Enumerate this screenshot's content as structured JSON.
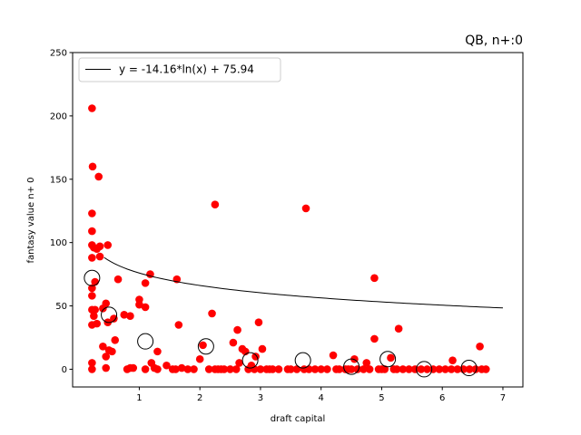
{
  "chart_data": {
    "type": "scatter",
    "title": "QB, n+:0",
    "xlabel": "draft capital",
    "ylabel": "fantasy value n+ 0",
    "xlim": [
      -0.1,
      7.33
    ],
    "ylim": [
      -14,
      250
    ],
    "xticks": [
      1,
      2,
      3,
      4,
      5,
      6,
      7
    ],
    "yticks": [
      0,
      50,
      100,
      150,
      200,
      250
    ],
    "grid": false,
    "legend": {
      "placement": "top-left",
      "entries": [
        "y = -14.16*ln(x) + 75.94"
      ]
    },
    "colors": {
      "points": "#ff0000",
      "fit": "#000000",
      "bins": "#000000"
    },
    "fit": {
      "a": -14.16,
      "b": 75.94,
      "x_range": [
        0.42,
        7.0
      ],
      "label": "y = -14.16*ln(x) + 75.94"
    },
    "bin_means": [
      {
        "x": 0.22,
        "y": 72
      },
      {
        "x": 0.5,
        "y": 43
      },
      {
        "x": 1.1,
        "y": 22
      },
      {
        "x": 2.1,
        "y": 18
      },
      {
        "x": 2.83,
        "y": 7
      },
      {
        "x": 3.7,
        "y": 7
      },
      {
        "x": 4.5,
        "y": 2
      },
      {
        "x": 5.1,
        "y": 8
      },
      {
        "x": 5.7,
        "y": 0
      },
      {
        "x": 6.44,
        "y": 1
      }
    ],
    "points": [
      [
        0.22,
        206
      ],
      [
        0.23,
        160
      ],
      [
        0.22,
        123
      ],
      [
        0.22,
        109
      ],
      [
        0.22,
        98
      ],
      [
        0.25,
        96
      ],
      [
        0.3,
        95
      ],
      [
        0.35,
        97
      ],
      [
        0.33,
        152
      ],
      [
        0.48,
        98
      ],
      [
        0.35,
        89
      ],
      [
        0.22,
        88
      ],
      [
        0.27,
        69
      ],
      [
        0.22,
        64
      ],
      [
        0.22,
        58
      ],
      [
        0.22,
        47
      ],
      [
        0.27,
        47
      ],
      [
        0.25,
        42
      ],
      [
        0.22,
        35
      ],
      [
        0.3,
        36
      ],
      [
        0.45,
        52
      ],
      [
        0.4,
        48
      ],
      [
        0.48,
        37
      ],
      [
        0.58,
        40
      ],
      [
        0.65,
        71
      ],
      [
        0.75,
        43
      ],
      [
        0.85,
        42
      ],
      [
        1.0,
        55
      ],
      [
        1.0,
        51
      ],
      [
        1.1,
        68
      ],
      [
        1.1,
        49
      ],
      [
        1.18,
        75
      ],
      [
        1.62,
        71
      ],
      [
        1.65,
        35
      ],
      [
        0.22,
        5
      ],
      [
        0.22,
        0
      ],
      [
        0.4,
        18
      ],
      [
        0.45,
        10
      ],
      [
        0.5,
        15
      ],
      [
        0.55,
        14
      ],
      [
        0.6,
        23
      ],
      [
        0.45,
        1
      ],
      [
        0.8,
        0
      ],
      [
        0.85,
        1
      ],
      [
        0.9,
        1
      ],
      [
        1.1,
        0
      ],
      [
        1.2,
        5
      ],
      [
        1.25,
        1
      ],
      [
        1.3,
        14
      ],
      [
        1.3,
        0
      ],
      [
        1.45,
        3
      ],
      [
        1.55,
        0
      ],
      [
        1.6,
        0
      ],
      [
        1.7,
        1
      ],
      [
        1.8,
        0
      ],
      [
        1.9,
        0
      ],
      [
        2.0,
        8
      ],
      [
        2.05,
        19
      ],
      [
        2.15,
        0
      ],
      [
        2.2,
        44
      ],
      [
        2.25,
        0
      ],
      [
        2.25,
        130
      ],
      [
        2.3,
        0
      ],
      [
        2.35,
        0
      ],
      [
        2.4,
        0
      ],
      [
        2.5,
        0
      ],
      [
        2.55,
        21
      ],
      [
        2.6,
        0
      ],
      [
        2.62,
        31
      ],
      [
        2.65,
        5
      ],
      [
        2.7,
        16
      ],
      [
        2.75,
        14
      ],
      [
        2.8,
        0
      ],
      [
        2.85,
        3
      ],
      [
        2.9,
        0
      ],
      [
        2.92,
        10
      ],
      [
        2.97,
        37
      ],
      [
        3.0,
        0
      ],
      [
        3.03,
        16
      ],
      [
        3.1,
        0
      ],
      [
        3.15,
        0
      ],
      [
        3.2,
        0
      ],
      [
        3.3,
        0
      ],
      [
        3.45,
        0
      ],
      [
        3.5,
        0
      ],
      [
        3.6,
        0
      ],
      [
        3.72,
        0
      ],
      [
        3.75,
        127
      ],
      [
        3.8,
        0
      ],
      [
        3.9,
        0
      ],
      [
        4.0,
        0
      ],
      [
        4.1,
        0
      ],
      [
        4.2,
        11
      ],
      [
        4.25,
        0
      ],
      [
        4.3,
        0
      ],
      [
        4.4,
        0
      ],
      [
        4.45,
        0
      ],
      [
        4.5,
        0
      ],
      [
        4.55,
        8
      ],
      [
        4.6,
        0
      ],
      [
        4.7,
        0
      ],
      [
        4.75,
        5
      ],
      [
        4.8,
        0
      ],
      [
        4.88,
        72
      ],
      [
        4.88,
        24
      ],
      [
        4.95,
        0
      ],
      [
        5.0,
        0
      ],
      [
        5.05,
        0
      ],
      [
        5.15,
        9
      ],
      [
        5.2,
        0
      ],
      [
        5.25,
        0
      ],
      [
        5.28,
        32
      ],
      [
        5.35,
        0
      ],
      [
        5.45,
        0
      ],
      [
        5.55,
        0
      ],
      [
        5.65,
        0
      ],
      [
        5.75,
        0
      ],
      [
        5.85,
        0
      ],
      [
        5.95,
        0
      ],
      [
        6.05,
        0
      ],
      [
        6.15,
        0
      ],
      [
        6.17,
        7
      ],
      [
        6.25,
        0
      ],
      [
        6.35,
        0
      ],
      [
        6.45,
        0
      ],
      [
        6.55,
        0
      ],
      [
        6.62,
        18
      ],
      [
        6.65,
        0
      ],
      [
        6.72,
        0
      ]
    ]
  }
}
